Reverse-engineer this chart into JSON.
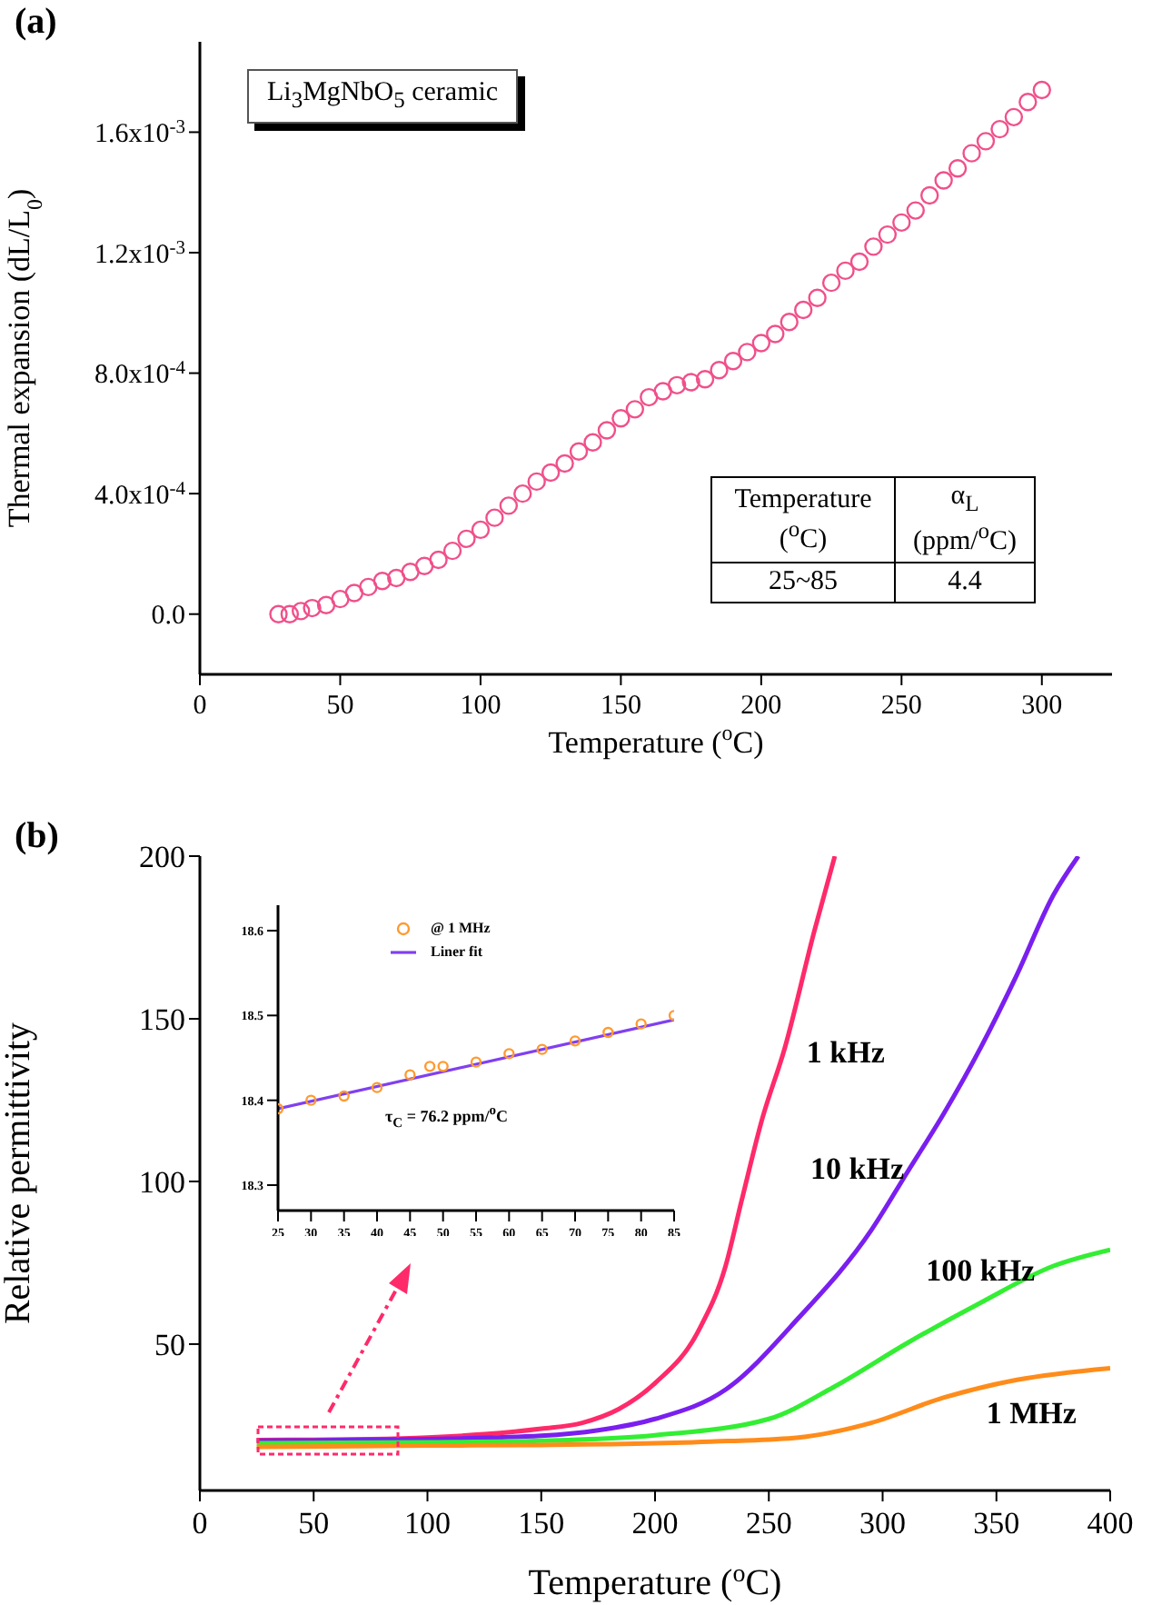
{
  "chart_data": [
    {
      "type": "scatter",
      "title": "(a)",
      "xlabel": "Temperature ($^{o}$C)",
      "ylabel": "Thermal expansion (dL/L$_{0}$)",
      "annotations": [
        "Li$_{3}$MgNbO$_{5}$ ceramic",
        "Temperature ($^{o}$C)",
        "α$_{L}$ (ppm/$^{o}$C)",
        "25~85",
        "4.4"
      ],
      "marker": "circle",
      "xlim": [
        0,
        325
      ],
      "xticks": [
        0,
        50,
        100,
        150,
        200,
        250,
        300
      ],
      "ylim": [
        -0.0002,
        0.0019
      ],
      "yticks": [
        {
          "value": 0,
          "label": "0.0"
        },
        {
          "value": 0.0004,
          "label": "4.0x10$^{-4}$"
        },
        {
          "value": 0.0008,
          "label": "8.0x10$^{-4}$"
        },
        {
          "value": 0.0012,
          "label": "1.2x10$^{-3}$"
        },
        {
          "value": 0.0016,
          "label": "1.6x10$^{-3}$"
        }
      ],
      "series": [
        {
          "color": "#f0508a",
          "x": [
            28,
            32,
            36,
            40,
            45,
            50,
            55,
            60,
            65,
            70,
            75,
            80,
            85,
            90,
            95,
            100,
            105,
            110,
            115,
            120,
            125,
            130,
            135,
            140,
            145,
            150,
            155,
            160,
            165,
            170,
            175,
            180,
            185,
            190,
            195,
            200,
            205,
            210,
            215,
            220,
            225,
            230,
            235,
            240,
            245,
            250,
            255,
            260,
            265,
            270,
            275,
            280,
            285,
            290,
            295,
            300
          ],
          "values": [
            0,
            0,
            1e-05,
            2e-05,
            3e-05,
            5e-05,
            7e-05,
            9e-05,
            0.00011,
            0.00012,
            0.00014,
            0.00016,
            0.00018,
            0.00021,
            0.00025,
            0.00028,
            0.00032,
            0.00036,
            0.0004,
            0.00044,
            0.00047,
            0.0005,
            0.00054,
            0.00057,
            0.00061,
            0.00065,
            0.00068,
            0.00072,
            0.00074,
            0.00076,
            0.00077,
            0.00078,
            0.00081,
            0.00084,
            0.00087,
            0.0009,
            0.00093,
            0.00097,
            0.00101,
            0.00105,
            0.0011,
            0.00114,
            0.00117,
            0.00122,
            0.00126,
            0.0013,
            0.00134,
            0.00139,
            0.00144,
            0.00148,
            0.00153,
            0.00157,
            0.00161,
            0.00165,
            0.0017,
            0.00174
          ]
        }
      ]
    },
    {
      "type": "line",
      "title": "(b)",
      "xlabel": "Temperature ($^{o}$C)",
      "ylabel": "Relative permittivity",
      "xlim": [
        0,
        400
      ],
      "xticks": [
        0,
        50,
        100,
        150,
        200,
        250,
        300,
        350,
        400
      ],
      "ylim": [
        5,
        200
      ],
      "yticks": [
        50,
        100,
        150,
        200
      ],
      "series": [
        {
          "name": "1 kHz",
          "color": "#ff2a6a",
          "x": [
            25,
            50,
            75,
            100,
            125,
            150,
            168,
            184,
            200,
            219,
            231,
            238,
            247,
            257,
            270,
            279
          ],
          "values": [
            20.5,
            20.6,
            20.8,
            21.3,
            22.3,
            24,
            25.8,
            30,
            38,
            54,
            74,
            94,
            119,
            141,
            177,
            200
          ]
        },
        {
          "name": "10 kHz",
          "color": "#7a1ff0",
          "x": [
            25,
            50,
            100,
            150,
            175,
            200,
            231,
            263,
            295,
            311,
            327,
            343,
            359,
            375,
            386
          ],
          "values": [
            20.3,
            20.4,
            20.8,
            21.8,
            23.5,
            27,
            36,
            58,
            85,
            103,
            121,
            141,
            163.5,
            188,
            200
          ]
        },
        {
          "name": "100 kHz",
          "color": "#33ee33",
          "x": [
            25,
            100,
            150,
            200,
            250,
            279,
            311,
            343,
            375,
            400
          ],
          "values": [
            19.5,
            19.8,
            20.3,
            22,
            27,
            37,
            50.4,
            62.7,
            74,
            79
          ]
        },
        {
          "name": "1 MHz",
          "color": "#ff8c1a",
          "x": [
            25,
            100,
            150,
            200,
            232,
            263,
            295,
            327,
            359,
            400
          ],
          "values": [
            18.4,
            18.8,
            19,
            19.5,
            20.2,
            21.3,
            25.8,
            33.6,
            39,
            42.6
          ]
        }
      ]
    },
    {
      "type": "scatter",
      "annotations": [
        "τ$_{C}$ = 76.2 ppm/$^{o}$C"
      ],
      "legend": "top left",
      "marker": "circle",
      "xlim": [
        25,
        85
      ],
      "xticks": [
        25,
        30,
        35,
        40,
        45,
        50,
        55,
        60,
        65,
        70,
        75,
        80,
        85
      ],
      "ylim": [
        18.27,
        18.63
      ],
      "yticks": [
        18.3,
        18.4,
        18.5,
        18.6
      ],
      "series": [
        {
          "name": "@ 1 MHz",
          "color": "#ff9a30",
          "x": [
            25,
            30,
            35,
            40,
            45,
            48,
            50,
            55,
            60,
            65,
            70,
            75,
            80,
            85
          ],
          "values": [
            18.39,
            18.4,
            18.405,
            18.415,
            18.43,
            18.44,
            18.44,
            18.445,
            18.455,
            18.46,
            18.47,
            18.48,
            18.49,
            18.5
          ]
        },
        {
          "name": "Liner fit",
          "type": "line",
          "marker": "none",
          "color": "#8040f0",
          "x": [
            25,
            85
          ],
          "values": [
            18.39,
            18.495
          ]
        }
      ]
    }
  ]
}
